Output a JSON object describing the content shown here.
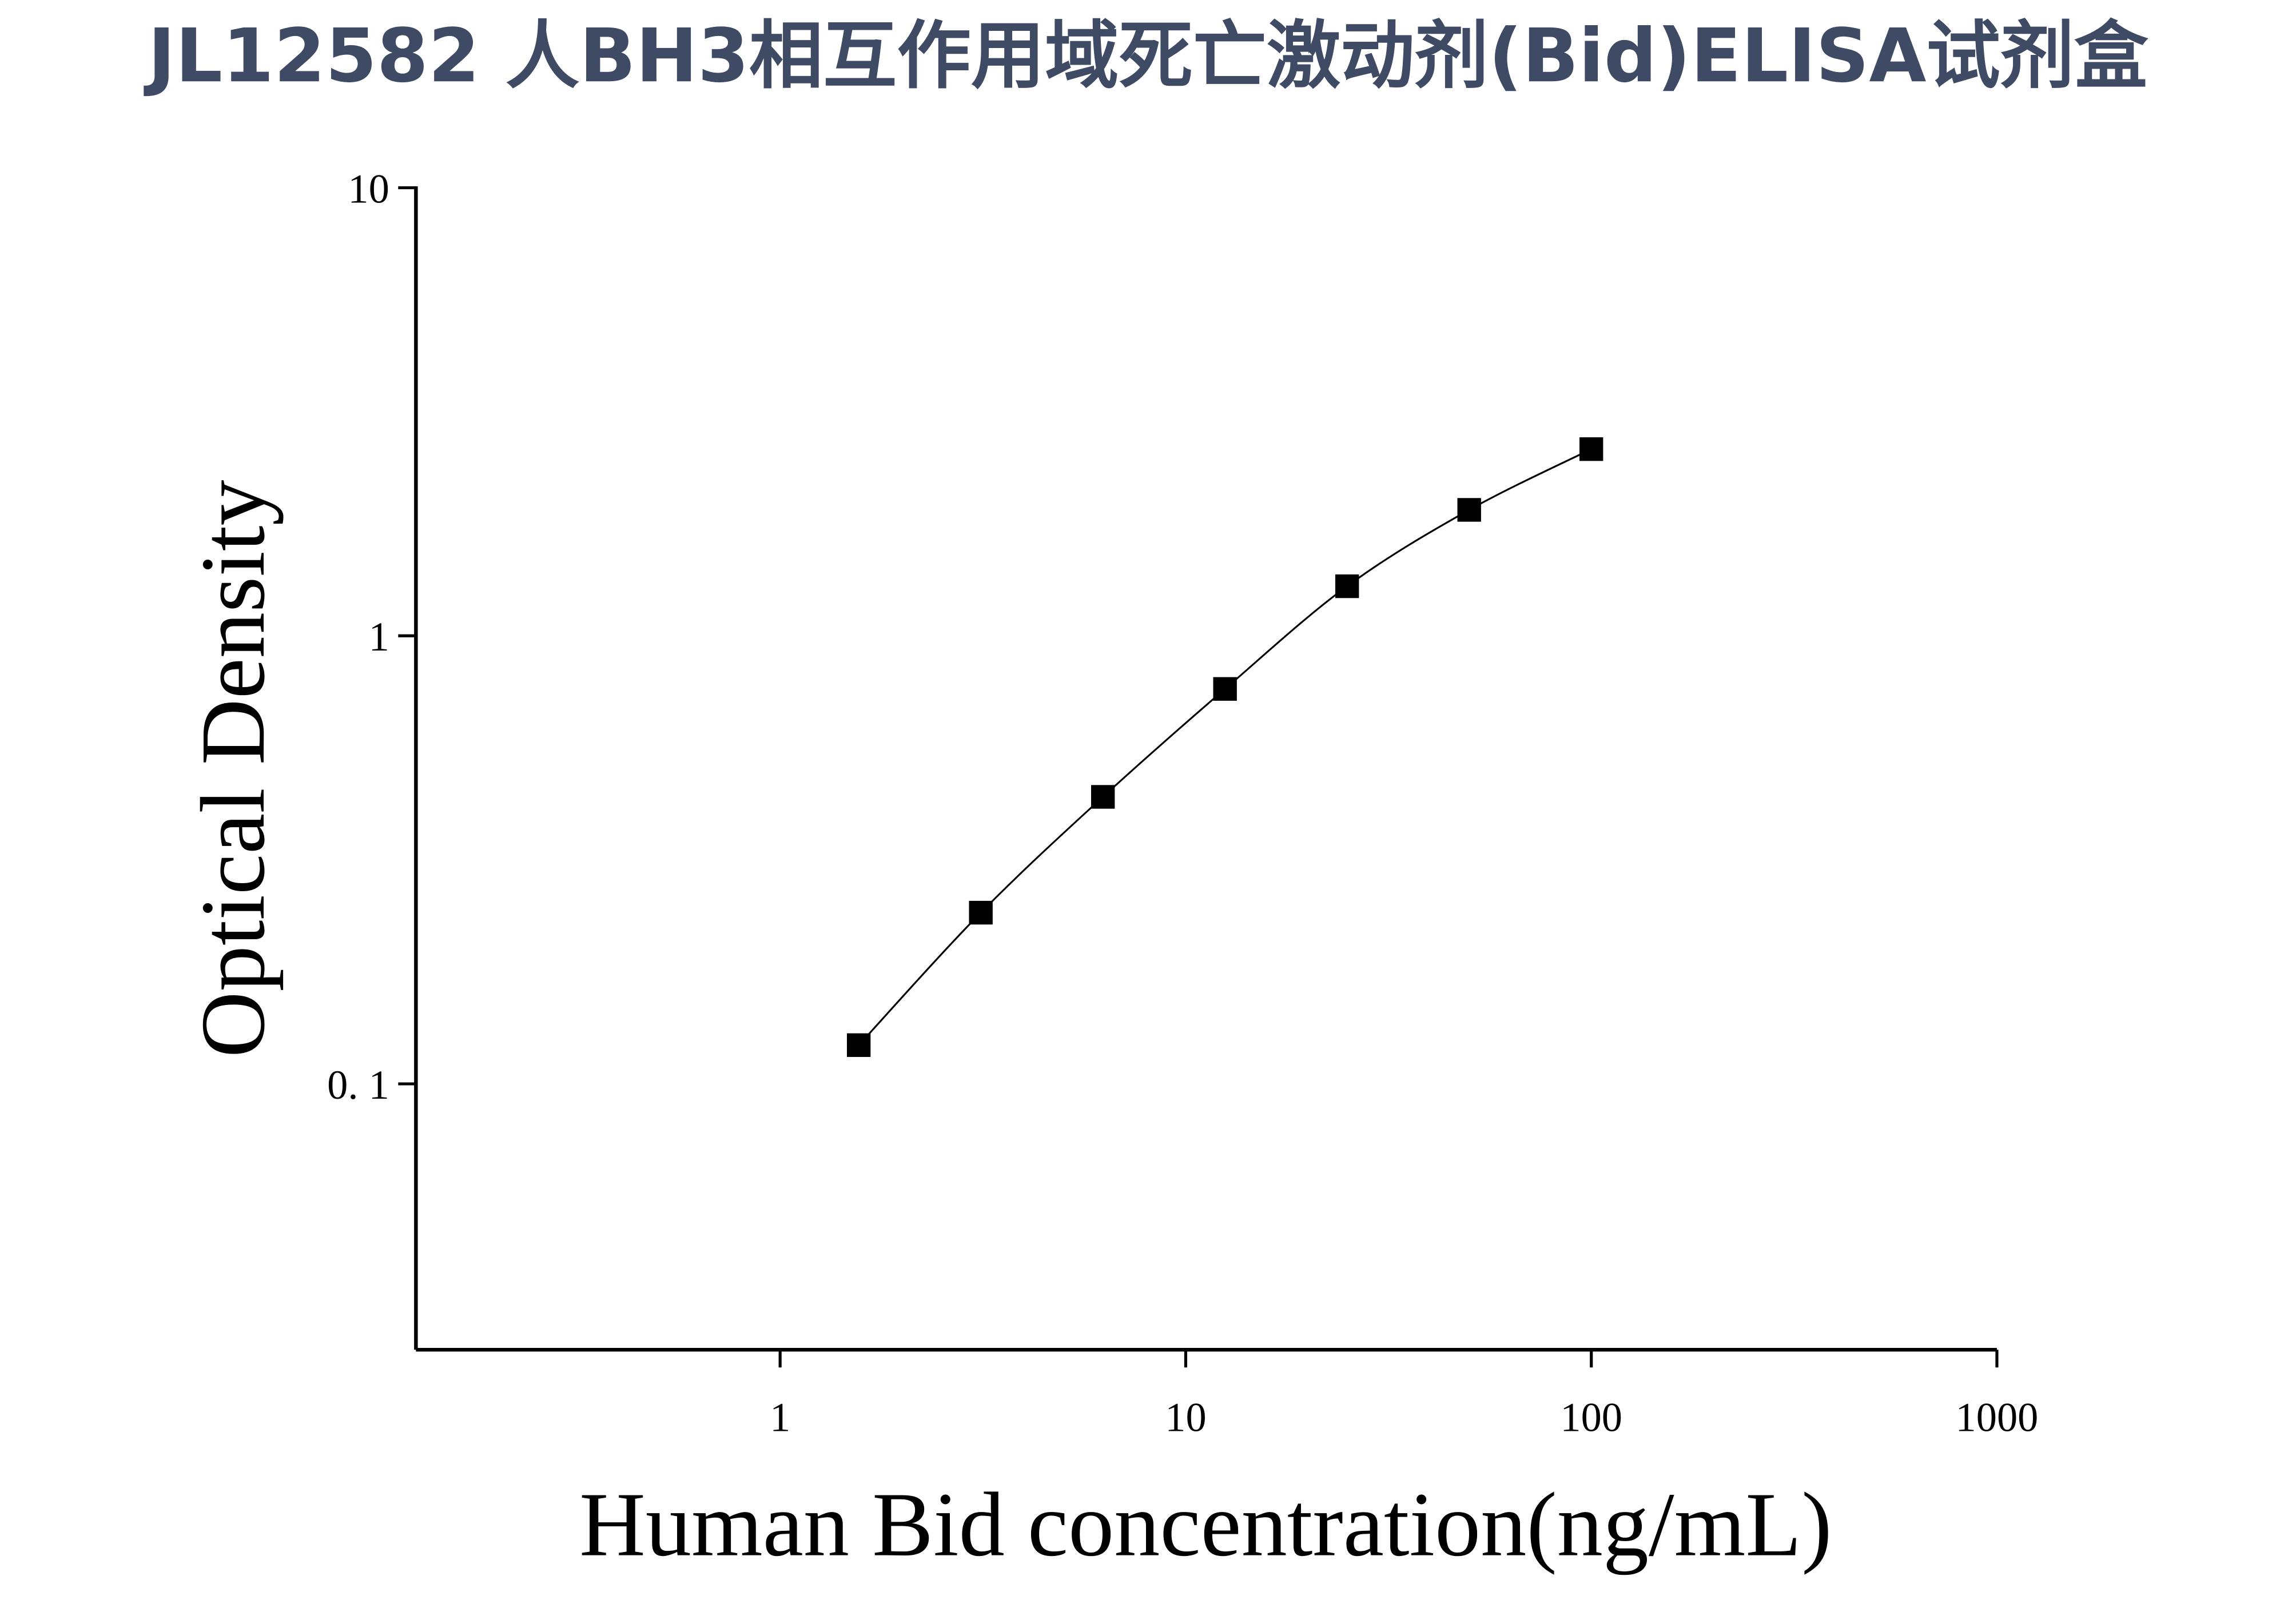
{
  "chart_data": {
    "type": "line",
    "title": "JL12582 人BH3相互作用域死亡激动剂(Bid)ELISA试剂盒",
    "x_label": "Human Bid concentration(ng/mL)",
    "y_label": "Optical Density",
    "x": [
      1.5625,
      3.125,
      6.25,
      12.5,
      25,
      50,
      100
    ],
    "series": [
      {
        "color": "#000000",
        "values": [
          0.122,
          0.241,
          0.437,
          0.761,
          1.29,
          1.91,
          2.61
        ]
      }
    ],
    "xscale": "log",
    "yscale": "log",
    "xlim": [
      0.1265,
      1000
    ],
    "ylim": [
      0.0255,
      10
    ],
    "xticks": [
      1,
      10,
      100,
      1000
    ],
    "yticks": [
      {
        "value": 0.1,
        "label": "0. 1"
      },
      1,
      10
    ],
    "grid": false,
    "marker": "square"
  }
}
